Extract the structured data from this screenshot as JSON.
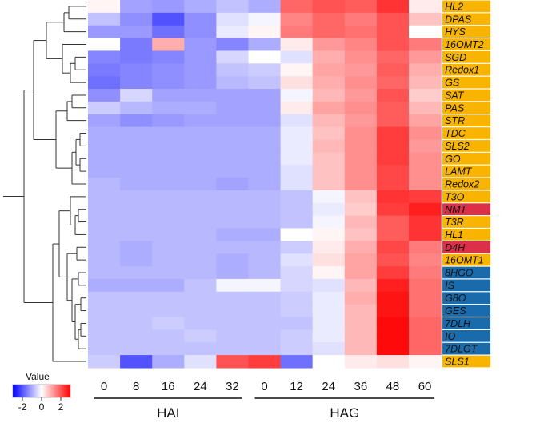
{
  "chart_data": {
    "type": "heatmap",
    "columns": [
      "0",
      "8",
      "16",
      "24",
      "32",
      "0",
      "12",
      "24",
      "36",
      "48",
      "60"
    ],
    "groups": [
      {
        "label": "HAI",
        "columns": [
          0,
          1,
          2,
          3,
          4
        ]
      },
      {
        "label": "HAG",
        "columns": [
          5,
          6,
          7,
          8,
          9,
          10
        ]
      }
    ],
    "rows": [
      {
        "gene": "HL2",
        "category": "yellow",
        "values": [
          0.1,
          -0.9,
          -1.0,
          -0.8,
          -0.6,
          -0.8,
          1.5,
          1.7,
          1.6,
          2.0,
          0.2
        ]
      },
      {
        "gene": "DPAS",
        "category": "yellow",
        "values": [
          -0.6,
          -1.1,
          -1.7,
          -1.1,
          -0.3,
          -0.1,
          1.2,
          1.5,
          1.3,
          1.7,
          0.6
        ]
      },
      {
        "gene": "HYS",
        "category": "yellow",
        "values": [
          -1.0,
          -1.0,
          -1.4,
          -1.1,
          -0.2,
          0.1,
          1.3,
          1.5,
          1.4,
          1.7,
          0.0
        ]
      },
      {
        "gene": "16OMT2",
        "category": "yellow",
        "values": [
          0.0,
          -1.3,
          0.8,
          -1.0,
          -1.2,
          -0.8,
          0.2,
          1.0,
          1.2,
          1.7,
          1.3
        ]
      },
      {
        "gene": "SGD",
        "category": "yellow",
        "values": [
          -1.2,
          -1.3,
          -1.2,
          -1.0,
          -0.4,
          0.0,
          -0.3,
          0.8,
          1.1,
          1.5,
          1.0
        ]
      },
      {
        "gene": "Redox1",
        "category": "yellow",
        "values": [
          -1.3,
          -1.2,
          -1.1,
          -1.0,
          -0.6,
          -0.5,
          0.1,
          0.9,
          1.0,
          1.6,
          0.8
        ]
      },
      {
        "gene": "GS",
        "category": "yellow",
        "values": [
          -1.4,
          -1.2,
          -1.1,
          -1.0,
          -0.7,
          -0.6,
          0.3,
          0.8,
          1.1,
          1.5,
          0.7
        ]
      },
      {
        "gene": "SAT",
        "category": "yellow",
        "values": [
          -1.1,
          -0.4,
          -0.9,
          -0.9,
          -0.9,
          -0.9,
          -0.1,
          0.7,
          1.0,
          1.7,
          0.5
        ]
      },
      {
        "gene": "PAS",
        "category": "yellow",
        "values": [
          -0.5,
          -0.7,
          -0.8,
          -0.8,
          -0.9,
          -0.9,
          0.2,
          0.9,
          1.1,
          1.6,
          0.7
        ]
      },
      {
        "gene": "STR",
        "category": "yellow",
        "values": [
          -0.9,
          -1.1,
          -1.0,
          -0.9,
          -0.9,
          -0.9,
          -0.3,
          0.7,
          1.0,
          1.6,
          0.9
        ]
      },
      {
        "gene": "TDC",
        "category": "yellow",
        "values": [
          -0.8,
          -0.8,
          -0.8,
          -0.8,
          -0.8,
          -0.8,
          -0.2,
          0.6,
          1.1,
          1.9,
          1.1
        ]
      },
      {
        "gene": "SLS2",
        "category": "yellow",
        "values": [
          -0.8,
          -0.8,
          -0.8,
          -0.8,
          -0.8,
          -0.8,
          -0.2,
          0.7,
          1.1,
          1.9,
          1.0
        ]
      },
      {
        "gene": "GO",
        "category": "yellow",
        "values": [
          -0.8,
          -0.8,
          -0.8,
          -0.8,
          -0.8,
          -0.8,
          -0.2,
          0.6,
          1.1,
          1.9,
          1.1
        ]
      },
      {
        "gene": "LAMT",
        "category": "yellow",
        "values": [
          -0.8,
          -0.8,
          -0.8,
          -0.8,
          -0.8,
          -0.8,
          -0.3,
          0.6,
          1.1,
          1.8,
          1.1
        ]
      },
      {
        "gene": "Redox2",
        "category": "yellow",
        "values": [
          -0.7,
          -0.8,
          -0.8,
          -0.8,
          -0.9,
          -0.8,
          -0.3,
          0.6,
          1.1,
          1.8,
          1.1
        ]
      },
      {
        "gene": "T3O",
        "category": "yellow",
        "values": [
          -0.7,
          -0.7,
          -0.7,
          -0.7,
          -0.7,
          -0.7,
          -0.6,
          -0.1,
          0.6,
          2.0,
          1.9
        ]
      },
      {
        "gene": "NMT",
        "category": "red",
        "values": [
          -0.7,
          -0.7,
          -0.7,
          -0.7,
          -0.7,
          -0.7,
          -0.6,
          -0.2,
          0.5,
          1.9,
          2.2
        ]
      },
      {
        "gene": "T3R",
        "category": "yellow",
        "values": [
          -0.7,
          -0.7,
          -0.7,
          -0.7,
          -0.7,
          -0.7,
          -0.6,
          -0.1,
          0.7,
          1.6,
          2.0
        ]
      },
      {
        "gene": "HL1",
        "category": "yellow",
        "values": [
          -0.7,
          -0.7,
          -0.7,
          -0.7,
          -0.8,
          -0.8,
          0.0,
          0.1,
          0.6,
          1.6,
          2.0
        ]
      },
      {
        "gene": "D4H",
        "category": "red",
        "values": [
          -0.7,
          -0.8,
          -0.7,
          -0.7,
          -0.7,
          -0.7,
          -0.5,
          0.2,
          0.8,
          1.8,
          1.3
        ]
      },
      {
        "gene": "16OMT1",
        "category": "yellow",
        "values": [
          -0.7,
          -0.8,
          -0.7,
          -0.7,
          -0.8,
          -0.7,
          -0.3,
          0.3,
          0.9,
          1.7,
          1.2
        ]
      },
      {
        "gene": "8HGO",
        "category": "blue",
        "values": [
          -0.7,
          -0.7,
          -0.7,
          -0.7,
          -0.8,
          -0.7,
          -0.4,
          0.1,
          0.9,
          1.9,
          1.3
        ]
      },
      {
        "gene": "IS",
        "category": "blue",
        "values": [
          -0.8,
          -0.8,
          -0.8,
          -0.6,
          -0.1,
          -0.1,
          -0.4,
          -0.3,
          0.7,
          2.2,
          1.4
        ]
      },
      {
        "gene": "G8O",
        "category": "blue",
        "values": [
          -0.6,
          -0.6,
          -0.6,
          -0.6,
          -0.6,
          -0.6,
          -0.5,
          -0.2,
          0.8,
          2.3,
          1.4
        ]
      },
      {
        "gene": "GES",
        "category": "blue",
        "values": [
          -0.6,
          -0.6,
          -0.6,
          -0.6,
          -0.6,
          -0.6,
          -0.5,
          -0.2,
          0.7,
          2.3,
          1.4
        ]
      },
      {
        "gene": "7DLH",
        "category": "blue",
        "values": [
          -0.6,
          -0.6,
          -0.5,
          -0.6,
          -0.6,
          -0.6,
          -0.6,
          -0.2,
          0.7,
          2.4,
          1.5
        ]
      },
      {
        "gene": "IO",
        "category": "blue",
        "values": [
          -0.6,
          -0.6,
          -0.6,
          -0.5,
          -0.6,
          -0.6,
          -0.5,
          -0.2,
          0.7,
          2.4,
          1.5
        ]
      },
      {
        "gene": "7DLGT",
        "category": "blue",
        "values": [
          -0.6,
          -0.6,
          -0.6,
          -0.6,
          -0.6,
          -0.6,
          -0.5,
          -0.3,
          0.7,
          2.4,
          1.5
        ]
      },
      {
        "gene": "SLS1",
        "category": "yellow",
        "values": [
          -0.5,
          -1.7,
          -0.8,
          -0.3,
          1.7,
          1.9,
          -1.4,
          0.0,
          0.2,
          0.3,
          0.1
        ]
      }
    ],
    "category_colors": {
      "yellow": "#f8b400",
      "red": "#dc2f48",
      "blue": "#1a6bab"
    },
    "color_scale": {
      "min": -2.5,
      "max": 2.5,
      "low": "#0000ff",
      "mid": "#ffffff",
      "high": "#ff0000"
    },
    "legend": {
      "title": "Value",
      "ticks": [
        "-2",
        "0",
        "2"
      ],
      "placement": "bottom-left"
    },
    "dendrogram": "left"
  }
}
